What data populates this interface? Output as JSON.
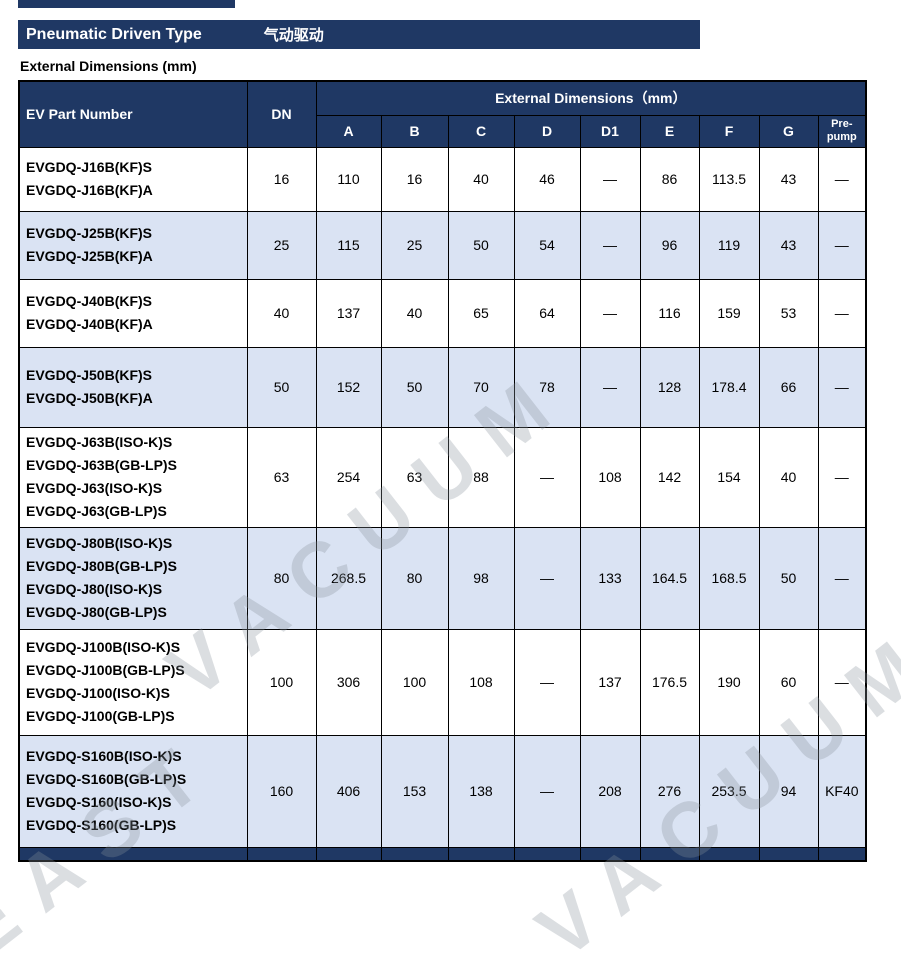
{
  "title_bar": {
    "en": "Pneumatic Driven Type",
    "zh": "气动驱动"
  },
  "section_label": "External Dimensions (mm)",
  "colors": {
    "navy": "#1f3864",
    "row_shade": "#dae3f3",
    "border": "#000000"
  },
  "table": {
    "header": {
      "part_col": "EV Part Number",
      "dn_col": "DN",
      "group": "External Dimensions（mm）",
      "dim_cols": [
        "A",
        "B",
        "C",
        "D",
        "D1",
        "E",
        "F",
        "G"
      ],
      "pre_pump_lines": [
        "Pre-",
        "pump"
      ]
    },
    "rows": [
      {
        "parts": [
          "EVGDQ-J16B(KF)S",
          "EVGDQ-J16B(KF)A"
        ],
        "dn": "16",
        "values": [
          "110",
          "16",
          "40",
          "46",
          "—",
          "86",
          "113.5",
          "43",
          "—"
        ],
        "shaded": false
      },
      {
        "parts": [
          "EVGDQ-J25B(KF)S",
          "EVGDQ-J25B(KF)A"
        ],
        "dn": "25",
        "values": [
          "115",
          "25",
          "50",
          "54",
          "—",
          "96",
          "119",
          "43",
          "—"
        ],
        "shaded": true
      },
      {
        "parts": [
          "EVGDQ-J40B(KF)S",
          "EVGDQ-J40B(KF)A"
        ],
        "dn": "40",
        "values": [
          "137",
          "40",
          "65",
          "64",
          "—",
          "116",
          "159",
          "53",
          "—"
        ],
        "shaded": false
      },
      {
        "parts": [
          "EVGDQ-J50B(KF)S",
          "EVGDQ-J50B(KF)A"
        ],
        "dn": "50",
        "values": [
          "152",
          "50",
          "70",
          "78",
          "—",
          "128",
          "178.4",
          "66",
          "—"
        ],
        "shaded": true
      },
      {
        "parts": [
          "EVGDQ-J63B(ISO-K)S",
          "EVGDQ-J63B(GB-LP)S",
          "EVGDQ-J63(ISO-K)S",
          "EVGDQ-J63(GB-LP)S"
        ],
        "dn": "63",
        "values": [
          "254",
          "63",
          "88",
          "—",
          "108",
          "142",
          "154",
          "40",
          "—"
        ],
        "shaded": false
      },
      {
        "parts": [
          "EVGDQ-J80B(ISO-K)S",
          "EVGDQ-J80B(GB-LP)S",
          "EVGDQ-J80(ISO-K)S",
          "EVGDQ-J80(GB-LP)S"
        ],
        "dn": "80",
        "values": [
          "268.5",
          "80",
          "98",
          "—",
          "133",
          "164.5",
          "168.5",
          "50",
          "—"
        ],
        "shaded": true
      },
      {
        "parts": [
          "EVGDQ-J100B(ISO-K)S",
          "EVGDQ-J100B(GB-LP)S",
          "EVGDQ-J100(ISO-K)S",
          "EVGDQ-J100(GB-LP)S"
        ],
        "dn": "100",
        "values": [
          "306",
          "100",
          "108",
          "—",
          "137",
          "176.5",
          "190",
          "60",
          "—"
        ],
        "shaded": false
      },
      {
        "parts": [
          "EVGDQ-S160B(ISO-K)S",
          "EVGDQ-S160B(GB-LP)S",
          "EVGDQ-S160(ISO-K)S",
          "EVGDQ-S160(GB-LP)S"
        ],
        "dn": "160",
        "values": [
          "406",
          "153",
          "138",
          "—",
          "208",
          "276",
          "253.5",
          "94",
          "KF40"
        ],
        "shaded": true
      }
    ]
  },
  "watermark": {
    "line1": "VACUUM",
    "line2": "VACUUM",
    "line3": "EAST"
  }
}
